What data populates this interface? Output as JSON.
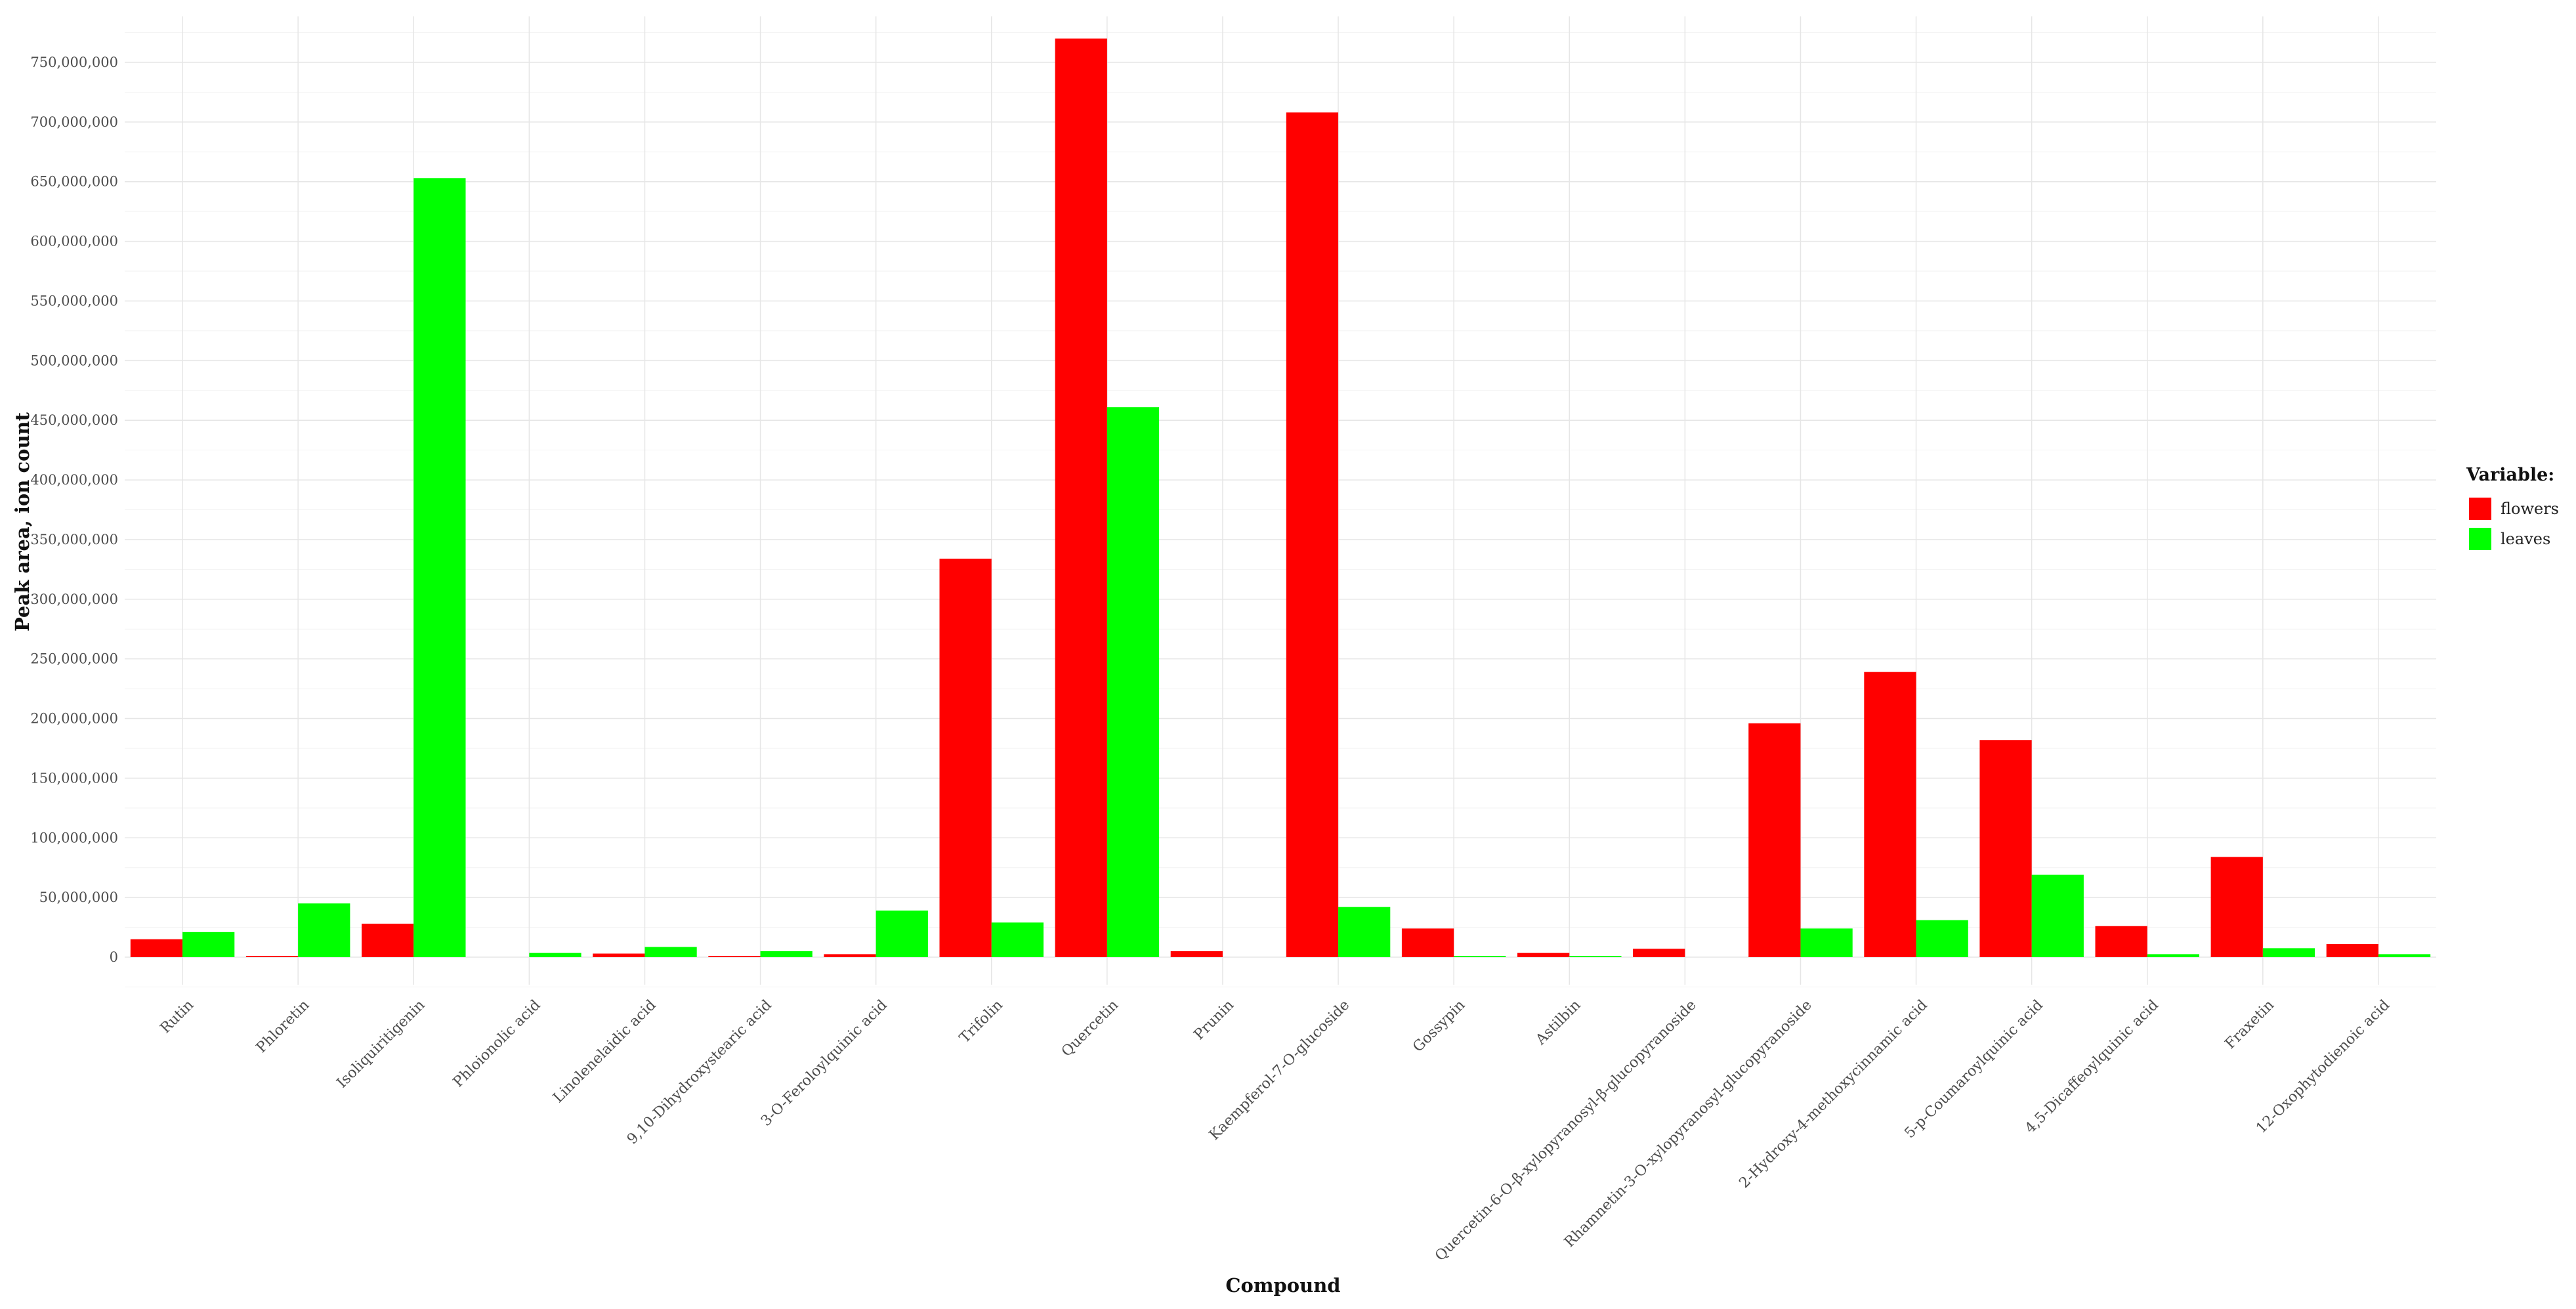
{
  "chart_data": {
    "type": "bar",
    "xlabel": "Compound",
    "ylabel": "Peak area, ion count",
    "ylim": [
      0,
      800000000
    ],
    "yticks": [
      0,
      50000000,
      100000000,
      150000000,
      200000000,
      250000000,
      300000000,
      350000000,
      400000000,
      450000000,
      500000000,
      550000000,
      600000000,
      650000000,
      700000000,
      750000000
    ],
    "ytick_labels": [
      "0",
      "50,000,000",
      "100,000,000",
      "150,000,000",
      "200,000,000",
      "250,000,000",
      "300,000,000",
      "350,000,000",
      "400,000,000",
      "450,000,000",
      "500,000,000",
      "550,000,000",
      "600,000,000",
      "650,000,000",
      "700,000,000",
      "750,000,000"
    ],
    "grid": true,
    "legend": {
      "title": "Variable:",
      "position": "right"
    },
    "categories": [
      "Rutin",
      "Phloretin",
      "Isoliquiritigenin",
      "Phloionolic acid",
      "Linolenelaidic acid",
      "9,10-Dihydroxystearic acid",
      "3-O-Feroloylquinic acid",
      "Trifolin",
      "Quercetin",
      "Prunin",
      "Kaempferol-7-O-glucoside",
      "Gossypin",
      "Astilbin",
      "Quercetin-6-O-β-xylopyranosyl-β-glucopyranoside",
      "Rhamnetin-3-O-xylopyranosyl-glucopyranoside",
      "2-Hydroxy-4-methoxycinnamic acid",
      "5-p-Coumaroylquinic acid",
      "4,5-Dicaffeoylquinic acid",
      "Fraxetin",
      "12-Oxophytodienoic acid"
    ],
    "series": [
      {
        "name": "flowers",
        "color": "#ff0000",
        "values": [
          15000000,
          1000000,
          28000000,
          0,
          3000000,
          1000000,
          2500000,
          334000000,
          770000000,
          5000000,
          708000000,
          24000000,
          3500000,
          7000000,
          196000000,
          239000000,
          182000000,
          26000000,
          84000000,
          11000000
        ]
      },
      {
        "name": "leaves",
        "color": "#00ff00",
        "values": [
          21000000,
          45000000,
          653000000,
          3500000,
          8500000,
          5000000,
          39000000,
          29000000,
          461000000,
          0,
          42000000,
          1000000,
          1000000,
          0,
          24000000,
          31000000,
          69000000,
          2500000,
          7500000,
          2500000
        ]
      }
    ]
  }
}
